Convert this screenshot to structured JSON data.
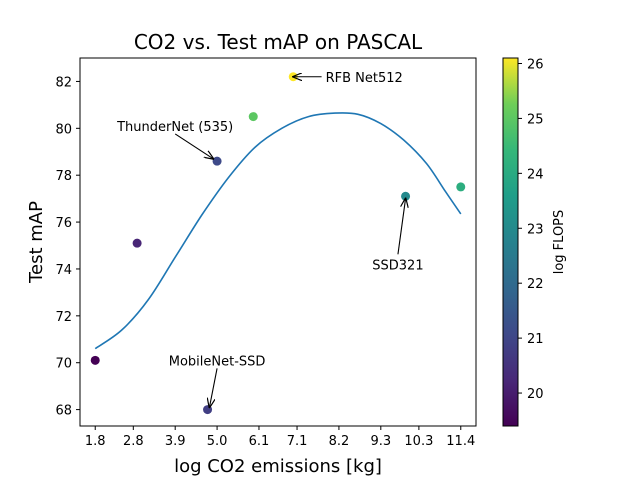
{
  "chart_data": {
    "type": "scatter",
    "title": "CO2 vs. Test mAP on PASCAL",
    "xlabel": "log CO2 emissions [kg]",
    "ylabel": "Test mAP",
    "xlim": [
      1.4,
      11.8
    ],
    "ylim": [
      67.3,
      83.0
    ],
    "xticks": [
      1.8,
      2.8,
      3.9,
      5.0,
      6.1,
      7.1,
      8.2,
      9.3,
      10.3,
      11.4
    ],
    "xtick_labels": [
      "1.8",
      "2.8",
      "3.9",
      "5.0",
      "6.1",
      "7.1",
      "8.2",
      "9.3",
      "10.3",
      "11.4"
    ],
    "yticks": [
      68,
      70,
      72,
      74,
      76,
      78,
      80,
      82
    ],
    "ytick_labels": [
      "68",
      "70",
      "72",
      "74",
      "76",
      "78",
      "80",
      "82"
    ],
    "points": [
      {
        "x": 1.8,
        "y": 70.1,
        "log_flops": 19.4
      },
      {
        "x": 2.9,
        "y": 75.1,
        "log_flops": 20.2
      },
      {
        "x": 4.75,
        "y": 68.0,
        "log_flops": 20.8
      },
      {
        "x": 5.0,
        "y": 78.6,
        "log_flops": 21.1
      },
      {
        "x": 5.95,
        "y": 80.5,
        "log_flops": 25.0
      },
      {
        "x": 7.0,
        "y": 82.2,
        "log_flops": 26.1
      },
      {
        "x": 9.95,
        "y": 77.1,
        "log_flops": 23.0
      },
      {
        "x": 11.4,
        "y": 77.5,
        "log_flops": 24.1
      }
    ],
    "fit_curve": {
      "color": "#1f77b4",
      "x": [
        1.8,
        2.5,
        3.2,
        3.9,
        4.6,
        5.3,
        6.0,
        6.7,
        7.4,
        8.1,
        8.7,
        9.3,
        9.9,
        10.5,
        11.0,
        11.4
      ],
      "y": [
        70.6,
        71.4,
        72.7,
        74.5,
        76.3,
        77.9,
        79.2,
        80.0,
        80.5,
        80.65,
        80.6,
        80.2,
        79.5,
        78.5,
        77.3,
        76.35
      ]
    },
    "annotations": [
      {
        "text": "RFB Net512",
        "target": [
          7.0,
          82.2
        ],
        "label_pos": [
          7.85,
          82.2
        ]
      },
      {
        "text": "ThunderNet (535)",
        "target": [
          4.9,
          78.7
        ],
        "label_pos": [
          3.9,
          80.1
        ]
      },
      {
        "text": "SSD321",
        "target": [
          9.95,
          77.0
        ],
        "label_pos": [
          9.75,
          74.2
        ]
      },
      {
        "text": "MobileNet-SSD",
        "target": [
          4.8,
          68.1
        ],
        "label_pos": [
          5.0,
          70.1
        ]
      }
    ],
    "colorbar": {
      "label": "log FLOPS",
      "range": [
        19.4,
        26.1
      ],
      "ticks": [
        20,
        21,
        22,
        23,
        24,
        25,
        26
      ],
      "tick_labels": [
        "20",
        "21",
        "22",
        "23",
        "24",
        "25",
        "26"
      ],
      "colormap": "viridis"
    },
    "grid": false,
    "legend": "none"
  }
}
